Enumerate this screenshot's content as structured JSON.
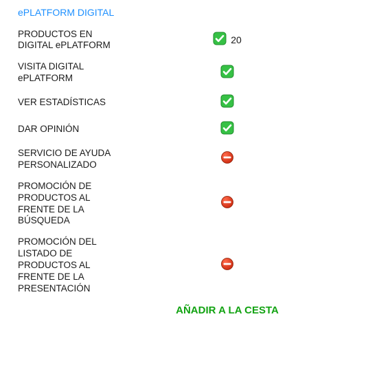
{
  "title": "ePLATFORM DIGITAL",
  "colors": {
    "title": "#1e90ff",
    "text": "#1a1a1a",
    "cta": "#12a312",
    "check_fill": "#36c145",
    "check_stroke": "#1e8a2a",
    "check_tick": "#ffffff",
    "deny_fill_top": "#ff6a4a",
    "deny_fill_bottom": "#cc2a10",
    "deny_bar": "#ffffff",
    "deny_ring": "#8a1a00"
  },
  "rows": [
    {
      "label": "PRODUCTOS EN DIGITAL ePLATFORM",
      "status": "yes",
      "count": "20"
    },
    {
      "label": "VISITA DIGITAL ePLATFORM",
      "status": "yes"
    },
    {
      "label": "VER ESTADÍSTICAS",
      "status": "yes"
    },
    {
      "label": "DAR OPINIÓN",
      "status": "yes"
    },
    {
      "label": "SERVICIO DE AYUDA PERSONALIZADO",
      "status": "no"
    },
    {
      "label": "PROMOCIÓN DE PRODUCTOS AL FRENTE DE LA BÚSQUEDA",
      "status": "no"
    },
    {
      "label": "PROMOCIÓN DEL LISTADO DE PRODUCTOS AL FRENTE DE LA PRESENTACIÓN",
      "status": "no"
    }
  ],
  "cta_label": "AÑADIR A LA CESTA"
}
